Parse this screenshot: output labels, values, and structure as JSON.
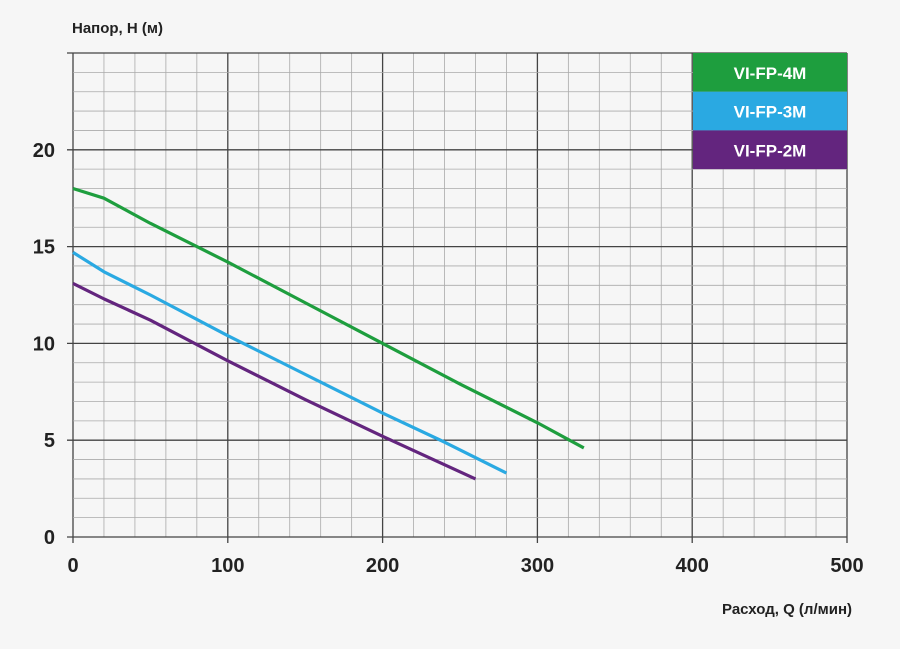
{
  "chart_data": {
    "type": "line",
    "xlabel": "Расход, Q (л/мин)",
    "ylabel": "Напор, H (м)",
    "xlim": [
      0,
      500
    ],
    "ylim": [
      0,
      25
    ],
    "xticks": [
      0,
      100,
      200,
      300,
      400,
      500
    ],
    "yticks": [
      0,
      5,
      10,
      15,
      20
    ],
    "grid": true,
    "legend_placement": "top-right",
    "series": [
      {
        "name": "VI-FP-4M",
        "color": "#1e9e3e",
        "x": [
          0,
          20,
          50,
          80,
          100,
          150,
          200,
          250,
          300,
          330
        ],
        "y": [
          18,
          17.5,
          16.2,
          15,
          14.2,
          12.1,
          10,
          7.9,
          5.9,
          4.6
        ]
      },
      {
        "name": "VI-FP-3M",
        "color": "#2aa9e2",
        "x": [
          0,
          20,
          50,
          100,
          150,
          200,
          240,
          280
        ],
        "y": [
          14.7,
          13.7,
          12.5,
          10.4,
          8.4,
          6.4,
          4.9,
          3.3
        ]
      },
      {
        "name": "VI-FP-2M",
        "color": "#63257e",
        "x": [
          0,
          20,
          50,
          100,
          150,
          200,
          260
        ],
        "y": [
          13.1,
          12.3,
          11.2,
          9.1,
          7.1,
          5.2,
          3.0
        ]
      }
    ]
  }
}
